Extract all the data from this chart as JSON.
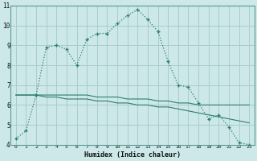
{
  "background_color": "#cce8e8",
  "grid_color": "#aacccc",
  "line_color": "#2e7d6e",
  "series1_x": [
    0,
    1,
    2,
    3,
    4,
    5,
    6,
    7,
    8,
    9,
    10,
    11,
    12,
    13,
    14,
    15,
    16,
    17,
    18,
    19,
    20,
    21,
    22,
    23
  ],
  "series1_y": [
    4.3,
    4.7,
    6.5,
    8.9,
    9.0,
    8.8,
    8.0,
    9.3,
    9.6,
    9.6,
    10.1,
    10.5,
    10.8,
    10.3,
    9.7,
    8.2,
    7.0,
    6.9,
    6.1,
    5.3,
    5.5,
    4.9,
    4.1,
    4.0
  ],
  "series2_x": [
    0,
    1,
    2,
    3,
    4,
    5,
    6,
    7,
    8,
    9,
    10,
    11,
    12,
    13,
    14,
    15,
    16,
    17,
    18,
    19,
    20,
    21,
    22,
    23
  ],
  "series2_y": [
    6.5,
    6.5,
    6.5,
    6.5,
    6.5,
    6.5,
    6.5,
    6.5,
    6.4,
    6.4,
    6.4,
    6.3,
    6.3,
    6.3,
    6.2,
    6.2,
    6.1,
    6.1,
    6.0,
    6.0,
    6.0,
    6.0,
    6.0,
    6.0
  ],
  "series3_x": [
    0,
    1,
    2,
    3,
    4,
    5,
    6,
    7,
    8,
    9,
    10,
    11,
    12,
    13,
    14,
    15,
    16,
    17,
    18,
    19,
    20,
    21,
    22,
    23
  ],
  "series3_y": [
    6.5,
    6.5,
    6.5,
    6.4,
    6.4,
    6.3,
    6.3,
    6.3,
    6.2,
    6.2,
    6.1,
    6.1,
    6.0,
    6.0,
    5.9,
    5.9,
    5.8,
    5.7,
    5.6,
    5.5,
    5.4,
    5.3,
    5.2,
    5.1
  ],
  "xlabel": "Humidex (Indice chaleur)",
  "ylim": [
    4,
    11
  ],
  "xlim": [
    -0.5,
    23.5
  ],
  "yticks": [
    4,
    5,
    6,
    7,
    8,
    9,
    10,
    11
  ],
  "xticks": [
    0,
    1,
    2,
    3,
    4,
    5,
    6,
    7,
    8,
    9,
    10,
    11,
    12,
    13,
    14,
    15,
    16,
    17,
    18,
    19,
    20,
    21,
    22,
    23
  ]
}
